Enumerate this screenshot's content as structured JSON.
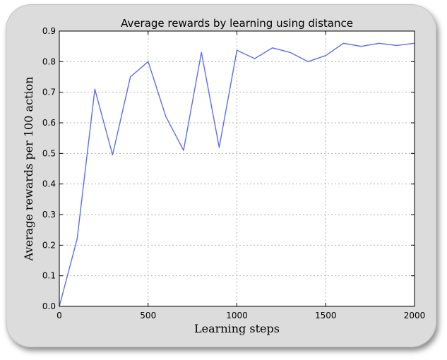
{
  "chart_data": {
    "type": "line",
    "title": "Average rewards by learning using distance",
    "xlabel": "Learning steps",
    "ylabel": "Average rewards per 100 action",
    "xlim": [
      0,
      2000
    ],
    "ylim": [
      0,
      0.9
    ],
    "xticks": [
      0,
      500,
      1000,
      1500,
      2000
    ],
    "yticks": [
      0.0,
      0.1,
      0.2,
      0.3,
      0.4,
      0.5,
      0.6,
      0.7,
      0.8,
      0.9
    ],
    "xtick_labels": [
      "0",
      "500",
      "1000",
      "1500",
      "2000"
    ],
    "ytick_labels": [
      "0.0",
      "0.1",
      "0.2",
      "0.3",
      "0.4",
      "0.5",
      "0.6",
      "0.7",
      "0.8",
      "0.9"
    ],
    "grid": true,
    "series": [
      {
        "color": "#5b6ef0",
        "x": [
          0,
          100,
          200,
          300,
          400,
          500,
          600,
          700,
          800,
          900,
          1000,
          1100,
          1200,
          1300,
          1400,
          1500,
          1600,
          1700,
          1800,
          1900,
          2000
        ],
        "y": [
          0.0,
          0.22,
          0.71,
          0.495,
          0.75,
          0.8,
          0.62,
          0.51,
          0.83,
          0.52,
          0.837,
          0.81,
          0.845,
          0.83,
          0.8,
          0.82,
          0.86,
          0.85,
          0.86,
          0.853,
          0.86
        ]
      }
    ]
  }
}
